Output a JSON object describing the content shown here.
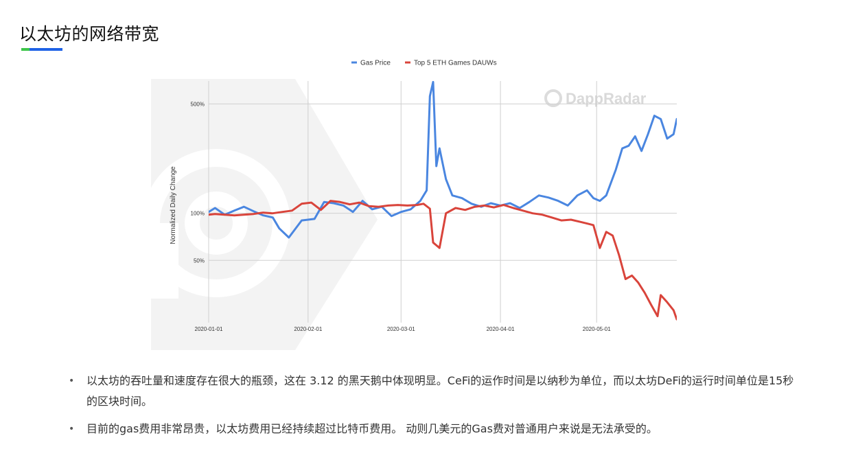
{
  "slide": {
    "title": "以太坊的网络带宽",
    "accent_colors": {
      "green": "#3ec64a",
      "blue": "#1e62e6"
    }
  },
  "bullets": [
    "以太坊的吞吐量和速度存在很大的瓶颈，这在 3.12 的黑天鹅中体现明显。CeFi的运作时间是以纳秒为单位，而以太坊DeFi的运行时间单位是15秒的区块时间。",
    "目前的gas费用非常昂贵，以太坊费用已经持续超过比特币费用。 动则几美元的Gas费对普通用户来说是无法承受的。"
  ],
  "chart_data": {
    "type": "line",
    "title": "",
    "xlabel": "",
    "ylabel": "Normalized Daily Change",
    "y_scale": "log",
    "ylim": [
      20,
      700
    ],
    "y_ticks": [
      {
        "value": 50,
        "label": "50%"
      },
      {
        "value": 100,
        "label": "100%"
      },
      {
        "value": 500,
        "label": "500%"
      }
    ],
    "x_ticks": [
      "2020-01-01",
      "2020-02-01",
      "2020-03-01",
      "2020-04-01",
      "2020-05-01"
    ],
    "x_range": [
      "2020-01-01",
      "2020-05-26"
    ],
    "legend_position": "top",
    "grid": true,
    "watermark": "DappRadar",
    "series": [
      {
        "name": "Gas Price",
        "color": "#4a86e0",
        "x": [
          "2020-01-01",
          "2020-01-03",
          "2020-01-06",
          "2020-01-09",
          "2020-01-12",
          "2020-01-15",
          "2020-01-18",
          "2020-01-21",
          "2020-01-23",
          "2020-01-26",
          "2020-01-30",
          "2020-02-03",
          "2020-02-06",
          "2020-02-09",
          "2020-02-12",
          "2020-02-15",
          "2020-02-18",
          "2020-02-21",
          "2020-02-24",
          "2020-02-27",
          "2020-03-01",
          "2020-03-04",
          "2020-03-07",
          "2020-03-09",
          "2020-03-10",
          "2020-03-11",
          "2020-03-12",
          "2020-03-13",
          "2020-03-15",
          "2020-03-17",
          "2020-03-20",
          "2020-03-23",
          "2020-03-26",
          "2020-03-29",
          "2020-04-01",
          "2020-04-04",
          "2020-04-07",
          "2020-04-10",
          "2020-04-13",
          "2020-04-16",
          "2020-04-19",
          "2020-04-22",
          "2020-04-25",
          "2020-04-28",
          "2020-04-30",
          "2020-05-02",
          "2020-05-04",
          "2020-05-07",
          "2020-05-09",
          "2020-05-11",
          "2020-05-13",
          "2020-05-15",
          "2020-05-17",
          "2020-05-19",
          "2020-05-21",
          "2020-05-23",
          "2020-05-25",
          "2020-05-26"
        ],
        "y": [
          102,
          108,
          98,
          104,
          110,
          103,
          97,
          94,
          80,
          70,
          90,
          92,
          118,
          116,
          112,
          102,
          120,
          106,
          110,
          96,
          102,
          106,
          120,
          140,
          560,
          690,
          200,
          260,
          165,
          130,
          125,
          115,
          110,
          116,
          112,
          116,
          108,
          118,
          130,
          126,
          120,
          112,
          130,
          140,
          125,
          120,
          130,
          190,
          260,
          270,
          310,
          250,
          320,
          420,
          400,
          300,
          320,
          400
        ]
      },
      {
        "name": "Top 5 ETH Games DAUWs",
        "color": "#d9443b",
        "x": [
          "2020-01-01",
          "2020-01-03",
          "2020-01-06",
          "2020-01-09",
          "2020-01-12",
          "2020-01-15",
          "2020-01-18",
          "2020-01-21",
          "2020-01-24",
          "2020-01-27",
          "2020-01-30",
          "2020-02-02",
          "2020-02-05",
          "2020-02-08",
          "2020-02-11",
          "2020-02-14",
          "2020-02-17",
          "2020-02-20",
          "2020-02-23",
          "2020-02-26",
          "2020-02-29",
          "2020-03-03",
          "2020-03-06",
          "2020-03-08",
          "2020-03-10",
          "2020-03-11",
          "2020-03-13",
          "2020-03-15",
          "2020-03-18",
          "2020-03-21",
          "2020-03-24",
          "2020-03-27",
          "2020-03-30",
          "2020-04-02",
          "2020-04-05",
          "2020-04-08",
          "2020-04-11",
          "2020-04-14",
          "2020-04-17",
          "2020-04-20",
          "2020-04-23",
          "2020-04-26",
          "2020-04-28",
          "2020-04-30",
          "2020-05-02",
          "2020-05-04",
          "2020-05-06",
          "2020-05-08",
          "2020-05-10",
          "2020-05-12",
          "2020-05-14",
          "2020-05-16",
          "2020-05-18",
          "2020-05-20",
          "2020-05-21",
          "2020-05-23",
          "2020-05-25",
          "2020-05-26"
        ],
        "y": [
          98,
          99,
          98,
          97,
          98,
          99,
          101,
          100,
          102,
          104,
          115,
          117,
          105,
          120,
          118,
          114,
          117,
          111,
          110,
          112,
          113,
          112,
          113,
          115,
          107,
          65,
          60,
          100,
          108,
          105,
          110,
          112,
          109,
          113,
          108,
          104,
          100,
          98,
          94,
          90,
          91,
          88,
          86,
          84,
          60,
          76,
          72,
          54,
          38,
          40,
          36,
          31,
          26,
          22,
          30,
          27,
          24,
          21
        ]
      }
    ]
  }
}
